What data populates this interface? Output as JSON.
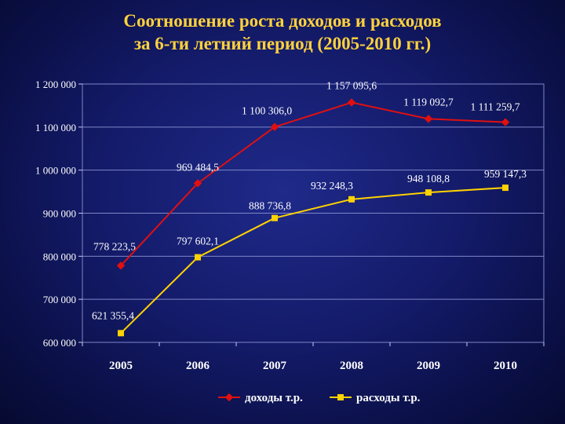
{
  "slide": {
    "title_line1": "Соотношение роста доходов и расходов",
    "title_line2": "за 6-ти летний период (2005-2010 гг.)"
  },
  "chart_data": {
    "type": "line",
    "categories": [
      "2005",
      "2006",
      "2007",
      "2008",
      "2009",
      "2010"
    ],
    "ylim": [
      600000,
      1200000
    ],
    "yticks": [
      600000,
      700000,
      800000,
      900000,
      1000000,
      1100000,
      1200000
    ],
    "ytick_labels": [
      "600 000",
      "700 000",
      "800 000",
      "900 000",
      "1 000 000",
      "1 100 000",
      "1 200 000"
    ],
    "grid": "horizontal",
    "legend_position": "bottom",
    "series": [
      {
        "name": "доходы т.р.",
        "color": "#e01010",
        "marker": "diamond",
        "values": [
          778223.5,
          969484.5,
          1100306.0,
          1157095.6,
          1119092.7,
          1111259.7
        ],
        "labels": [
          "778 223,5",
          "969 484,5",
          "1 100 306,0",
          "1 157 095,6",
          "1 119 092,7",
          "1 111 259,7"
        ]
      },
      {
        "name": "расходы т.р.",
        "color": "#ffd200",
        "marker": "square",
        "values": [
          621355.4,
          797602.1,
          888736.8,
          932248.3,
          948108.8,
          959147.3
        ],
        "labels": [
          "621 355,4",
          "797 602,1",
          "888 736,8",
          "932 248,3",
          "948 108,8",
          "959 147,3"
        ]
      }
    ]
  }
}
